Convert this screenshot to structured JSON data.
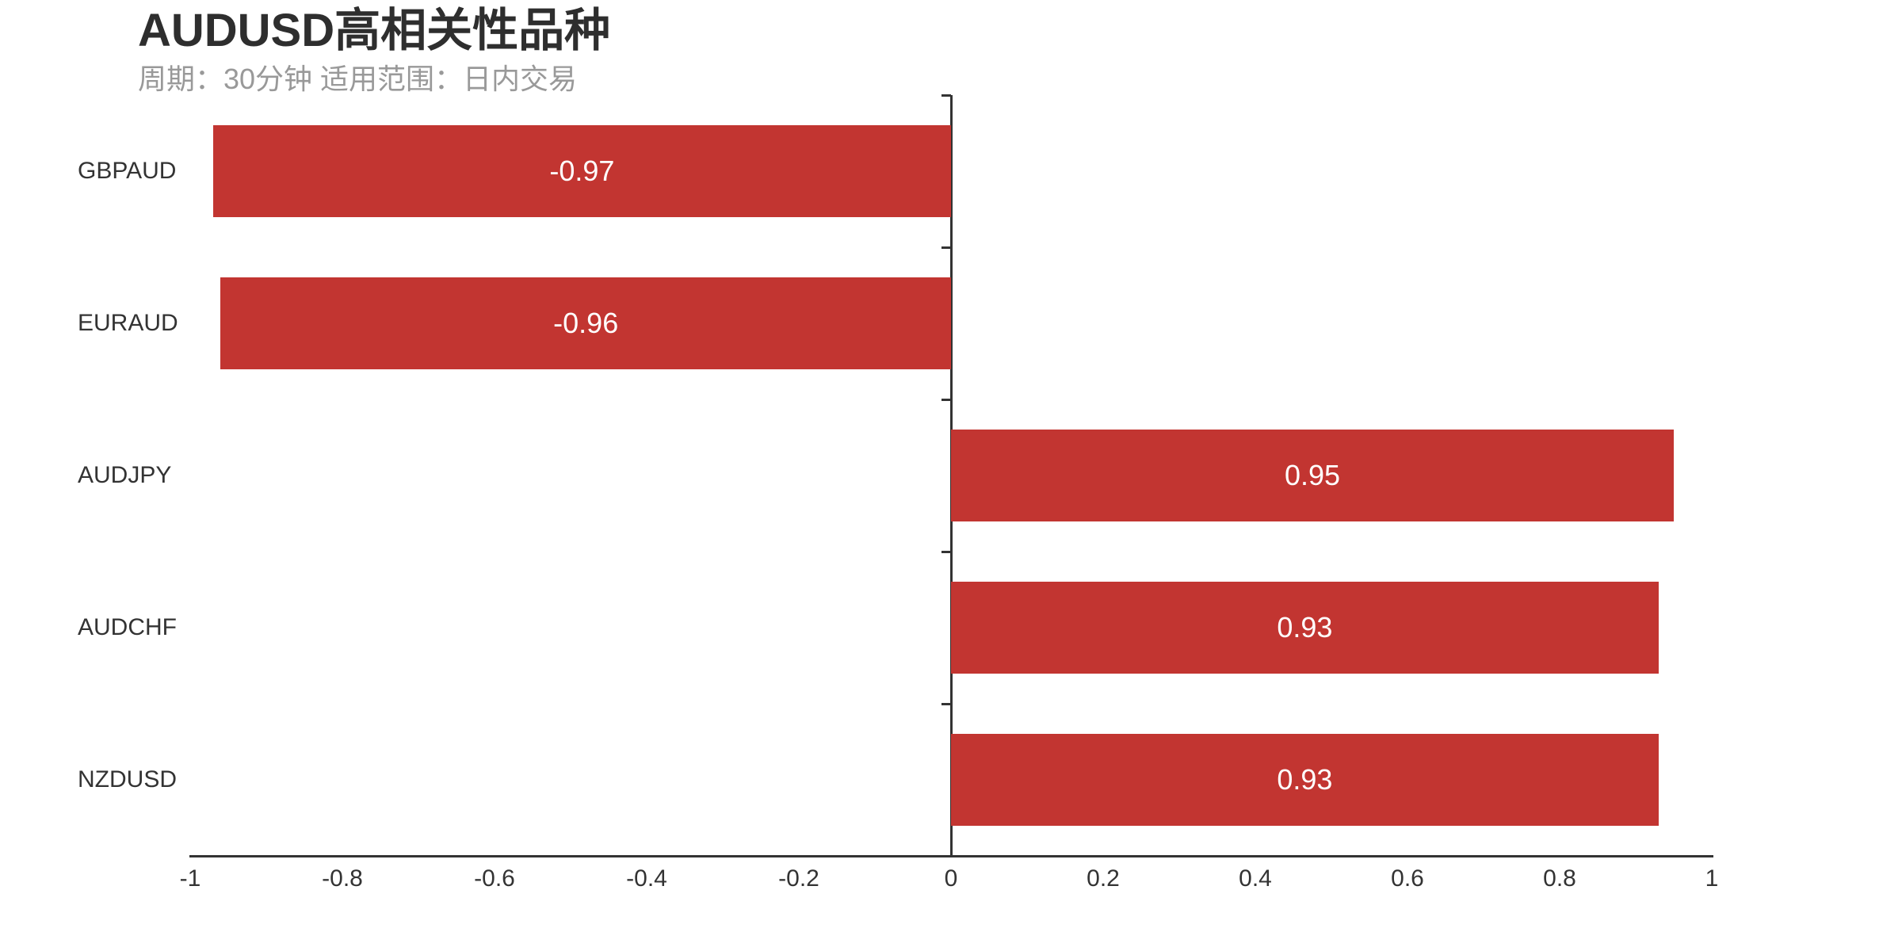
{
  "page": {
    "background_color": "#ffffff"
  },
  "chart_data": {
    "type": "bar",
    "orientation": "horizontal",
    "title": "AUDUSD高相关性品种",
    "subtitle": "周期：30分钟 适用范围：日内交易",
    "categories": [
      "GBPAUD",
      "EURAUD",
      "AUDJPY",
      "AUDCHF",
      "NZDUSD"
    ],
    "values": [
      -0.97,
      -0.96,
      0.95,
      0.93,
      0.93
    ],
    "value_labels": [
      "-0.97",
      "-0.96",
      "0.95",
      "0.93",
      "0.93"
    ],
    "value_label_position": "inside-center",
    "xlabel": "",
    "ylabel": "",
    "xlim": [
      -1,
      1
    ],
    "x_ticks": [
      -1,
      -0.8,
      -0.6,
      -0.4,
      -0.2,
      0,
      0.2,
      0.4,
      0.6,
      0.8,
      1
    ],
    "x_tick_labels": [
      "-1",
      "-0.8",
      "-0.6",
      "-0.4",
      "-0.2",
      "0",
      "0.2",
      "0.4",
      "0.6",
      "0.8",
      "1"
    ],
    "grid": false,
    "legend": false,
    "category_axis_on_zero": true,
    "colors": {
      "bar": "#c23531",
      "axis_line": "#333333",
      "tick_label": "#333333",
      "category_label": "#333333",
      "value_label": "#ffffff",
      "title": "#2e2e2e",
      "subtitle": "#999999",
      "background": "#ffffff"
    }
  }
}
